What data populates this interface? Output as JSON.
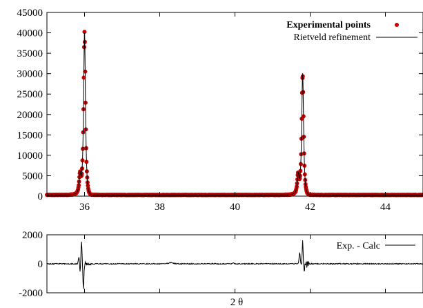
{
  "chart_data": [
    {
      "type": "scatter",
      "xlabel": "",
      "ylabel": "",
      "xlim": [
        35,
        45
      ],
      "ylim": [
        0,
        45000
      ],
      "xticks": [
        36,
        38,
        40,
        42,
        44
      ],
      "xtick_labels": [
        "36",
        "38",
        "40",
        "42",
        "44"
      ],
      "yticks": [
        0,
        5000,
        10000,
        15000,
        20000,
        25000,
        30000,
        35000,
        40000,
        45000
      ],
      "ytick_labels": [
        "0",
        "5000",
        "10000",
        "15000",
        "20000",
        "25000",
        "30000",
        "35000",
        "40000",
        "45000"
      ],
      "legend": "top-right",
      "grid": false,
      "baseline": 300,
      "peaks": [
        {
          "x": 36.0,
          "height": 39500,
          "shoulder_x": 35.88,
          "shoulder_height": 6000
        },
        {
          "x": 41.8,
          "height": 29500,
          "shoulder_x": 41.68,
          "shoulder_height": 6000
        }
      ],
      "series": [
        {
          "name": "Experimental points",
          "style": "points",
          "color": "#cc0000"
        },
        {
          "name": "Rietveld refinement",
          "style": "line",
          "color": "#000000"
        }
      ]
    },
    {
      "type": "line",
      "xlabel": "2 θ",
      "ylabel": "",
      "xlim": [
        35,
        45
      ],
      "ylim": [
        -2000,
        2000
      ],
      "yticks": [
        -2000,
        0,
        2000
      ],
      "ytick_labels": [
        "-2000",
        "0",
        "2000"
      ],
      "legend": "top-right",
      "grid": false,
      "residual_features": [
        {
          "x": 35.9,
          "max": 1500,
          "min": -1800
        },
        {
          "x": 41.8,
          "max": 1600,
          "min": -500
        }
      ],
      "series": [
        {
          "name": "Exp. - Calc",
          "style": "line",
          "color": "#000000"
        }
      ]
    }
  ]
}
